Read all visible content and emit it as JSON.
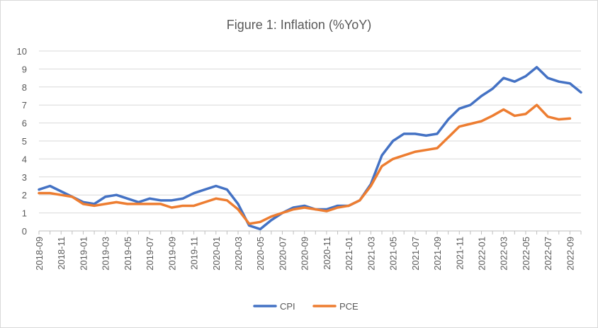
{
  "chart_data": {
    "type": "line",
    "title": "Figure 1: Inflation (%YoY)",
    "xlabel": "",
    "ylabel": "",
    "ylim": [
      0,
      10
    ],
    "yticks": [
      0,
      1,
      2,
      3,
      4,
      5,
      6,
      7,
      8,
      9,
      10
    ],
    "grid": "horizontal",
    "legend_position": "bottom",
    "x_tick_labels": [
      "2018-09",
      "2018-11",
      "2019-01",
      "2019-03",
      "2019-05",
      "2019-07",
      "2019-09",
      "2019-11",
      "2020-01",
      "2020-03",
      "2020-05",
      "2020-07",
      "2020-09",
      "2020-11",
      "2021-01",
      "2021-03",
      "2021-05",
      "2021-07",
      "2021-09",
      "2021-11",
      "2022-01",
      "2022-03",
      "2022-05",
      "2022-07",
      "2022-09"
    ],
    "x": [
      "2018-09",
      "2018-10",
      "2018-11",
      "2018-12",
      "2019-01",
      "2019-02",
      "2019-03",
      "2019-04",
      "2019-05",
      "2019-06",
      "2019-07",
      "2019-08",
      "2019-09",
      "2019-10",
      "2019-11",
      "2019-12",
      "2020-01",
      "2020-02",
      "2020-03",
      "2020-04",
      "2020-05",
      "2020-06",
      "2020-07",
      "2020-08",
      "2020-09",
      "2020-10",
      "2020-11",
      "2020-12",
      "2021-01",
      "2021-02",
      "2021-03",
      "2021-04",
      "2021-05",
      "2021-06",
      "2021-07",
      "2021-08",
      "2021-09",
      "2021-10",
      "2021-11",
      "2021-12",
      "2022-01",
      "2022-02",
      "2022-03",
      "2022-04",
      "2022-05",
      "2022-06",
      "2022-07",
      "2022-08",
      "2022-09",
      "2022-10"
    ],
    "series": [
      {
        "name": "CPI",
        "color": "#4472C4",
        "values": [
          2.3,
          2.5,
          2.2,
          1.9,
          1.6,
          1.5,
          1.9,
          2.0,
          1.8,
          1.6,
          1.8,
          1.7,
          1.7,
          1.8,
          2.1,
          2.3,
          2.5,
          2.3,
          1.5,
          0.3,
          0.1,
          0.6,
          1.0,
          1.3,
          1.4,
          1.2,
          1.2,
          1.4,
          1.4,
          1.7,
          2.6,
          4.2,
          5.0,
          5.4,
          5.4,
          5.3,
          5.4,
          6.2,
          6.8,
          7.0,
          7.5,
          7.9,
          8.5,
          8.3,
          8.6,
          9.1,
          8.5,
          8.3,
          8.2,
          7.7
        ]
      },
      {
        "name": "PCE",
        "color": "#ED7D31",
        "values": [
          2.1,
          2.1,
          2.0,
          1.9,
          1.5,
          1.4,
          1.5,
          1.6,
          1.5,
          1.5,
          1.5,
          1.5,
          1.3,
          1.4,
          1.4,
          1.6,
          1.8,
          1.7,
          1.2,
          0.4,
          0.5,
          0.8,
          1.0,
          1.2,
          1.3,
          1.2,
          1.1,
          1.3,
          1.4,
          1.7,
          2.5,
          3.6,
          4.0,
          4.2,
          4.4,
          4.5,
          4.6,
          5.2,
          5.8,
          5.95,
          6.1,
          6.4,
          6.75,
          6.4,
          6.5,
          7.0,
          6.35,
          6.2,
          6.25,
          null
        ]
      }
    ]
  }
}
